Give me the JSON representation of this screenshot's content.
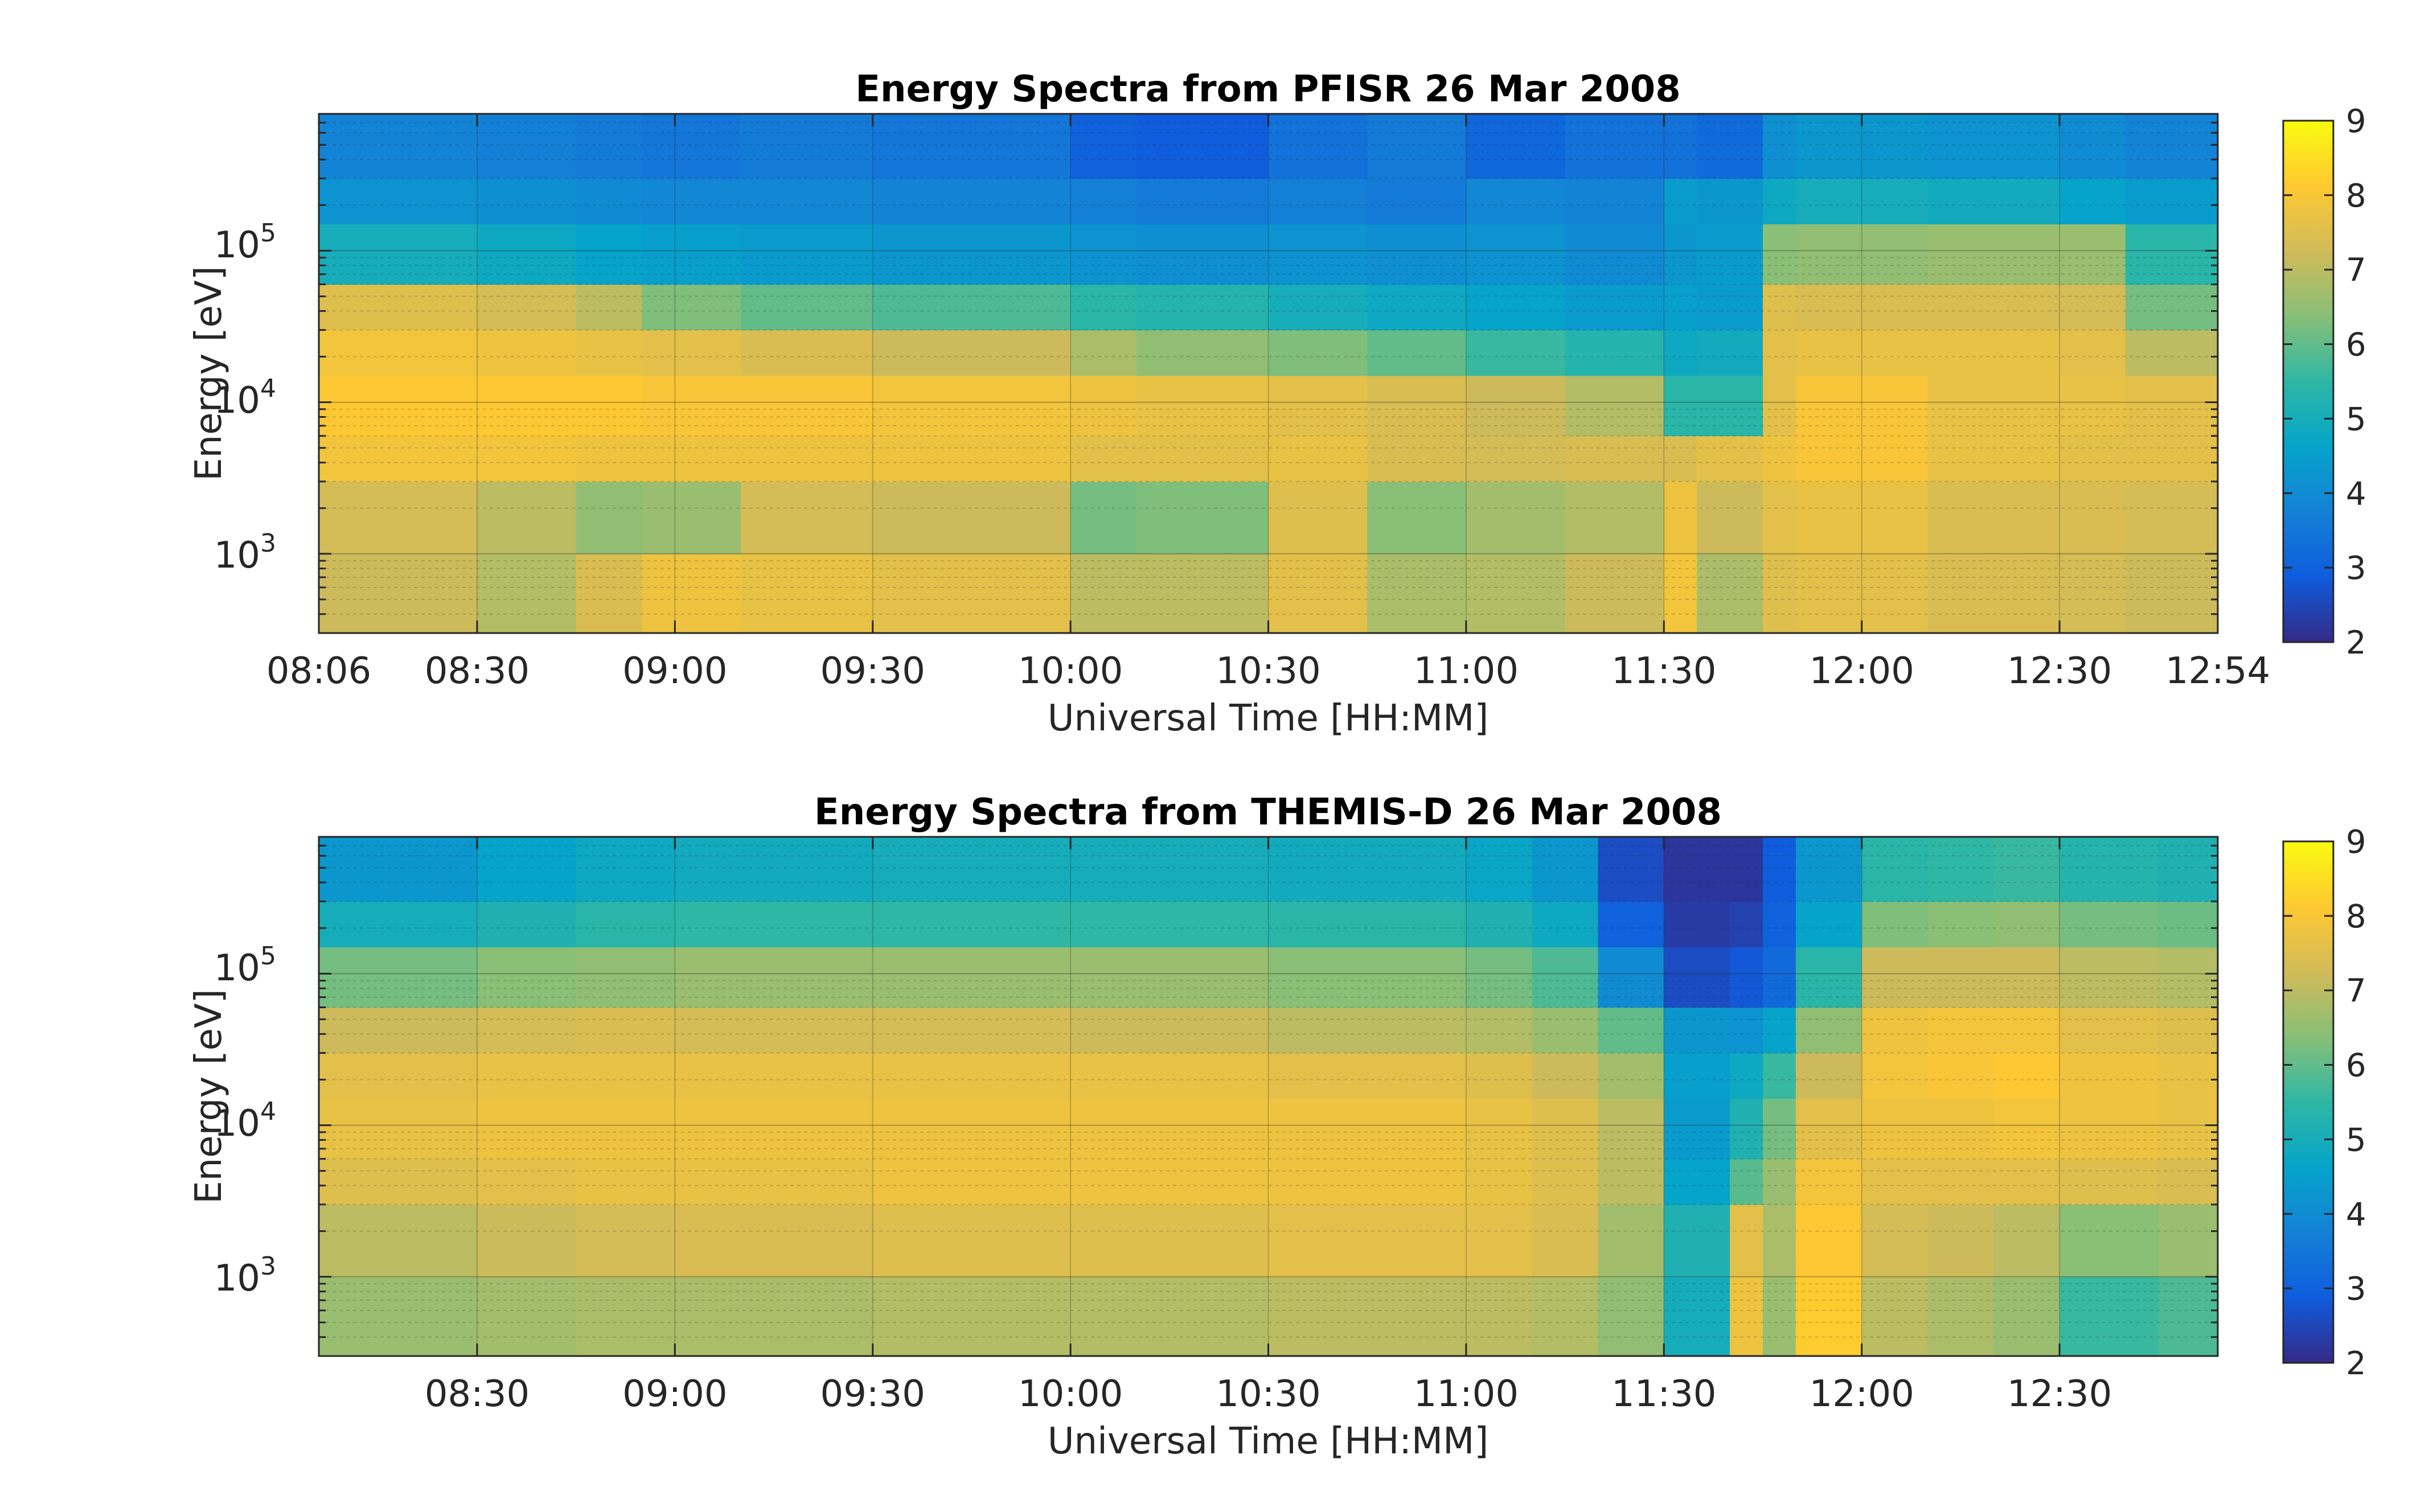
{
  "figure": {
    "colormap": "parula",
    "colormap_stops": [
      "#352a87",
      "#0f5cdd",
      "#1481d6",
      "#06a4ca",
      "#2eb7a4",
      "#87bf77",
      "#d1bb59",
      "#fec832",
      "#f9fb0e"
    ]
  },
  "chart_data": [
    {
      "type": "heatmap",
      "title": "Energy Spectra from PFISR 26 Mar 2008",
      "xlabel": "Universal Time [HH:MM]",
      "ylabel": "Energy [eV]",
      "x_ticks": [
        "08:06",
        "08:30",
        "09:00",
        "09:30",
        "10:00",
        "10:30",
        "11:00",
        "11:30",
        "12:00",
        "12:30",
        "12:54"
      ],
      "xlim": [
        "08:06",
        "12:54"
      ],
      "y_scale": "log",
      "y_ticks": [
        {
          "base": "10",
          "exp": "3",
          "value": 1000
        },
        {
          "base": "10",
          "exp": "4",
          "value": 10000
        },
        {
          "base": "10",
          "exp": "5",
          "value": 100000
        }
      ],
      "ylim": [
        300,
        800000
      ],
      "grid": true,
      "colorbar": {
        "ticks": [
          "2",
          "3",
          "4",
          "5",
          "6",
          "7",
          "8",
          "9"
        ],
        "range": [
          2,
          9
        ]
      },
      "x_times": [
        "08:06",
        "08:30",
        "08:45",
        "08:55",
        "09:10",
        "09:30",
        "10:00",
        "10:10",
        "10:30",
        "10:45",
        "11:00",
        "11:15",
        "11:30",
        "11:35",
        "11:45",
        "11:50",
        "12:10",
        "12:30",
        "12:40",
        "12:54"
      ],
      "y_energies": [
        300,
        1000,
        3000,
        6000,
        15000,
        30000,
        60000,
        150000,
        300000,
        800000
      ],
      "values": [
        [
          7.2,
          6.9,
          7.4,
          7.8,
          7.7,
          7.6,
          7.0,
          7.0,
          7.6,
          6.8,
          6.9,
          7.2,
          7.9,
          6.8,
          7.5,
          7.6,
          7.4,
          7.3,
          7.2,
          6.7
        ],
        [
          7.3,
          7.0,
          6.5,
          6.6,
          7.3,
          7.2,
          6.2,
          6.3,
          7.5,
          6.4,
          6.7,
          6.9,
          7.8,
          7.2,
          7.6,
          7.7,
          7.4,
          7.4,
          7.3,
          6.8
        ],
        [
          7.9,
          7.9,
          7.8,
          7.8,
          7.8,
          7.8,
          7.6,
          7.6,
          7.7,
          7.4,
          7.3,
          7.4,
          7.4,
          7.6,
          7.8,
          8.0,
          7.7,
          7.6,
          7.6,
          7.7
        ],
        [
          8.1,
          8.1,
          8.1,
          8.0,
          8.0,
          7.9,
          7.8,
          7.7,
          7.6,
          7.4,
          7.2,
          6.9,
          5.4,
          5.4,
          7.6,
          8.0,
          7.7,
          7.7,
          7.6,
          7.7
        ],
        [
          7.9,
          7.8,
          7.7,
          7.6,
          7.4,
          7.2,
          6.8,
          6.5,
          6.3,
          6.0,
          5.6,
          5.3,
          4.8,
          4.9,
          7.6,
          7.7,
          7.7,
          7.6,
          7.0,
          7.0
        ],
        [
          7.5,
          7.3,
          7.0,
          6.3,
          6.0,
          5.8,
          5.4,
          5.3,
          5.0,
          4.8,
          4.6,
          4.4,
          4.5,
          4.4,
          7.5,
          7.4,
          7.4,
          7.3,
          6.2,
          6.0
        ],
        [
          5.0,
          4.8,
          4.6,
          4.5,
          4.4,
          4.3,
          4.2,
          4.1,
          4.2,
          4.1,
          4.2,
          4.0,
          4.3,
          4.4,
          6.4,
          6.5,
          6.6,
          6.6,
          5.4,
          5.2
        ],
        [
          4.2,
          4.1,
          4.0,
          3.9,
          3.9,
          3.8,
          3.7,
          3.6,
          3.7,
          3.6,
          3.9,
          3.8,
          4.4,
          4.3,
          4.8,
          5.0,
          4.9,
          4.6,
          4.4,
          4.2
        ],
        [
          3.8,
          3.7,
          3.6,
          3.5,
          3.6,
          3.5,
          3.0,
          2.9,
          3.4,
          3.6,
          3.1,
          3.4,
          3.4,
          3.2,
          4.1,
          4.3,
          4.2,
          4.0,
          3.8,
          3.7
        ],
        [
          3.6,
          3.5,
          3.3,
          3.1,
          3.3,
          3.4,
          2.6,
          2.5,
          3.2,
          3.5,
          2.7,
          3.1,
          3.1,
          2.9,
          3.8,
          4.0,
          3.9,
          3.8,
          3.3,
          3.0
        ]
      ]
    },
    {
      "type": "heatmap",
      "title": "Energy Spectra from THEMIS-D 26 Mar 2008",
      "xlabel": "Universal Time [HH:MM]",
      "ylabel": "Energy [eV]",
      "x_ticks": [
        "08:30",
        "09:00",
        "09:30",
        "10:00",
        "10:30",
        "11:00",
        "11:30",
        "12:00",
        "12:30"
      ],
      "xlim": [
        "08:06",
        "12:54"
      ],
      "y_scale": "log",
      "y_ticks": [
        {
          "base": "10",
          "exp": "3",
          "value": 1000
        },
        {
          "base": "10",
          "exp": "4",
          "value": 10000
        },
        {
          "base": "10",
          "exp": "5",
          "value": 100000
        }
      ],
      "ylim": [
        300,
        800000
      ],
      "grid": true,
      "colorbar": {
        "ticks": [
          "2",
          "3",
          "4",
          "5",
          "6",
          "7",
          "8",
          "9"
        ],
        "range": [
          2,
          9
        ]
      },
      "x_times": [
        "08:06",
        "08:30",
        "08:45",
        "09:00",
        "09:30",
        "10:00",
        "10:30",
        "11:00",
        "11:10",
        "11:20",
        "11:30",
        "11:40",
        "11:45",
        "11:50",
        "12:00",
        "12:10",
        "12:20",
        "12:30",
        "12:45",
        "12:54"
      ],
      "y_energies": [
        300,
        1000,
        3000,
        6000,
        15000,
        30000,
        60000,
        150000,
        300000,
        800000
      ],
      "values": [
        [
          6.6,
          6.7,
          6.8,
          6.8,
          6.9,
          6.9,
          7.0,
          7.0,
          6.9,
          6.5,
          5.0,
          7.8,
          6.6,
          8.2,
          7.0,
          6.8,
          6.6,
          5.6,
          5.8,
          6.0
        ],
        [
          7.0,
          7.2,
          7.3,
          7.4,
          7.5,
          7.5,
          7.6,
          7.6,
          7.4,
          6.7,
          5.2,
          7.6,
          6.8,
          8.1,
          7.3,
          7.2,
          7.0,
          6.4,
          6.6,
          6.8
        ],
        [
          7.5,
          7.6,
          7.7,
          7.7,
          7.8,
          7.8,
          7.8,
          7.7,
          7.5,
          7.0,
          4.6,
          5.9,
          6.6,
          7.9,
          7.6,
          7.6,
          7.6,
          7.5,
          7.4,
          7.5
        ],
        [
          7.7,
          7.8,
          7.8,
          7.8,
          7.8,
          7.8,
          7.8,
          7.7,
          7.5,
          7.0,
          4.4,
          5.2,
          6.2,
          7.6,
          7.8,
          7.8,
          7.9,
          7.8,
          7.7,
          7.7
        ],
        [
          7.6,
          7.7,
          7.7,
          7.7,
          7.7,
          7.7,
          7.6,
          7.5,
          7.2,
          6.7,
          4.5,
          4.8,
          5.6,
          7.2,
          7.9,
          8.0,
          8.1,
          7.8,
          7.7,
          7.6
        ],
        [
          7.2,
          7.3,
          7.4,
          7.3,
          7.3,
          7.2,
          7.0,
          6.9,
          6.6,
          6.0,
          4.3,
          4.2,
          4.6,
          6.5,
          7.8,
          7.9,
          7.9,
          7.6,
          7.5,
          7.4
        ],
        [
          6.2,
          6.4,
          6.5,
          6.6,
          6.6,
          6.6,
          6.4,
          6.2,
          5.8,
          4.0,
          2.6,
          2.8,
          3.2,
          5.4,
          7.2,
          7.2,
          7.2,
          7.0,
          6.9,
          6.8
        ],
        [
          5.0,
          5.2,
          5.4,
          5.5,
          5.5,
          5.5,
          5.4,
          5.2,
          4.8,
          3.0,
          2.3,
          2.4,
          3.0,
          4.6,
          6.3,
          6.4,
          6.5,
          6.2,
          6.1,
          6.0
        ],
        [
          4.3,
          4.6,
          4.8,
          4.9,
          5.0,
          5.0,
          4.9,
          4.7,
          4.3,
          2.6,
          2.2,
          2.2,
          2.9,
          4.3,
          5.4,
          5.5,
          5.6,
          5.3,
          5.2,
          5.2
        ],
        [
          3.5,
          4.0,
          4.2,
          4.3,
          4.4,
          4.4,
          4.3,
          4.0,
          3.6,
          2.3,
          2.1,
          2.1,
          2.8,
          4.0,
          5.0,
          5.1,
          5.1,
          4.9,
          4.9,
          4.9
        ]
      ]
    }
  ]
}
